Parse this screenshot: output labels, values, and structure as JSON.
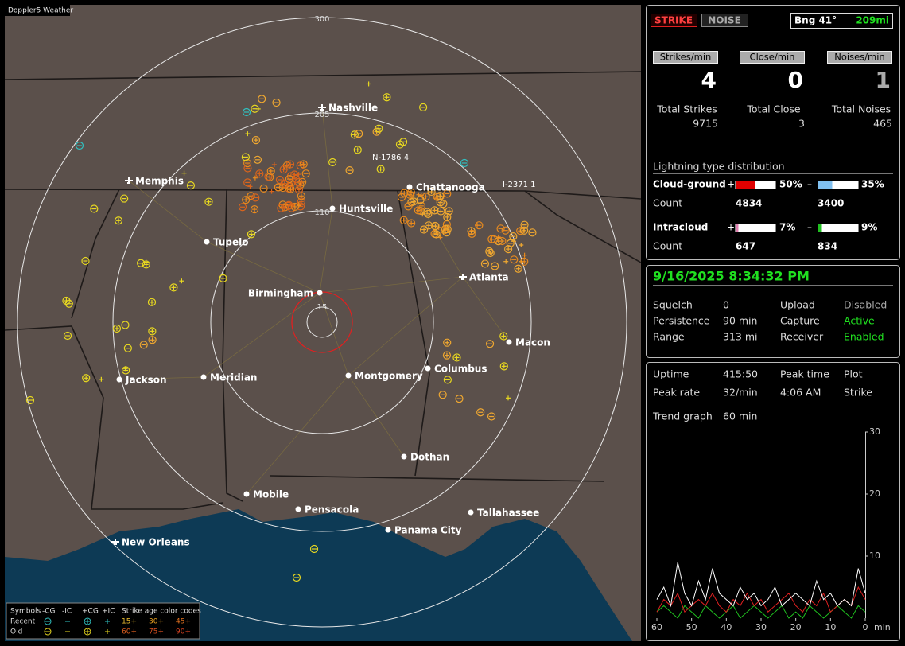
{
  "map": {
    "brand": "Doppler5 Weather",
    "range_labels": [
      "300",
      "205",
      "110",
      "15"
    ],
    "cities": [
      {
        "name": "Nashville",
        "airport": true
      },
      {
        "name": "Memphis",
        "airport": true
      },
      {
        "name": "Chattanooga",
        "airport": false
      },
      {
        "name": "Huntsville",
        "airport": false
      },
      {
        "name": "Tupelo",
        "airport": false
      },
      {
        "name": "Birmingham",
        "airport": false
      },
      {
        "name": "Atlanta",
        "airport": true
      },
      {
        "name": "Macon",
        "airport": false
      },
      {
        "name": "Jackson",
        "airport": false
      },
      {
        "name": "Meridian",
        "airport": false
      },
      {
        "name": "Montgomery",
        "airport": false
      },
      {
        "name": "Columbus",
        "airport": false
      },
      {
        "name": "Dothan",
        "airport": false
      },
      {
        "name": "Mobile",
        "airport": false
      },
      {
        "name": "Pensacola",
        "airport": false
      },
      {
        "name": "Panama City",
        "airport": false
      },
      {
        "name": "Tallahassee",
        "airport": false
      },
      {
        "name": "New Orleans",
        "airport": true
      }
    ],
    "markers": [
      "N-1786 4",
      "I-2371 1"
    ],
    "legend": {
      "symbols": "Symbols",
      "kinds": [
        "-CG",
        "-IC",
        "+CG",
        "+IC"
      ],
      "age_title": "Strike age color codes",
      "rows": [
        "Recent",
        "Old"
      ],
      "ages": [
        [
          "15+",
          "30+",
          "45+"
        ],
        [
          "60+",
          "75+",
          "90+"
        ]
      ]
    }
  },
  "status": {
    "strike": "STRIKE",
    "noise": "NOISE",
    "bearing": "Bng 41°",
    "distance": "209mi",
    "rates": [
      {
        "label": "Strikes/min",
        "value": 4,
        "total_label": "Total Strikes",
        "total": 9715
      },
      {
        "label": "Close/min",
        "value": 0,
        "total_label": "Total Close",
        "total": 3
      },
      {
        "label": "Noises/min",
        "value": 1,
        "total_label": "Total Noises",
        "total": 465
      }
    ],
    "distribution": {
      "title": "Lightning type distribution",
      "rows": [
        {
          "name": "Cloud-ground",
          "count_label": "Count",
          "pos": {
            "value": 50,
            "label": "50%"
          },
          "neg": {
            "value": 35,
            "label": "35%"
          },
          "pos_count": 4834,
          "neg_count": 3400
        },
        {
          "name": "Intracloud",
          "count_label": "Count",
          "pos": {
            "value": 7,
            "label": "7%"
          },
          "neg": {
            "value": 9,
            "label": "9%"
          },
          "pos_count": 647,
          "neg_count": 834
        }
      ],
      "plus": "+",
      "minus": "–"
    }
  },
  "settings": {
    "datetime": "9/16/2025 8:34:32 PM",
    "rows": [
      [
        "Squelch",
        "0",
        "Upload",
        "Disabled"
      ],
      [
        "Persistence",
        "90 min",
        "Capture",
        "Active"
      ],
      [
        "Range",
        "313 mi",
        "Receiver",
        "Enabled"
      ]
    ]
  },
  "info": {
    "rows": [
      [
        "Uptime",
        "415:50",
        "Peak time",
        "Plot"
      ],
      [
        "Peak rate",
        "32/min",
        "4:06 AM",
        "Strike"
      ]
    ],
    "trend_label": "Trend graph",
    "trend_value": "60 min"
  },
  "trend": {
    "ylim": [
      0,
      30
    ],
    "yticks": [
      30,
      20,
      10
    ],
    "xlim": [
      60,
      0
    ],
    "xticks": [
      60,
      50,
      40,
      30,
      20,
      10,
      0
    ],
    "unit": "min",
    "x": [
      60,
      58,
      56,
      54,
      52,
      50,
      48,
      46,
      44,
      42,
      40,
      38,
      36,
      34,
      32,
      30,
      28,
      26,
      24,
      22,
      20,
      18,
      16,
      14,
      12,
      10,
      8,
      6,
      4,
      2,
      0
    ],
    "series": [
      {
        "color": "#ffffff",
        "values": [
          3,
          5,
          2,
          9,
          4,
          2,
          6,
          3,
          8,
          4,
          3,
          2,
          5,
          3,
          4,
          2,
          3,
          5,
          2,
          3,
          4,
          3,
          2,
          6,
          3,
          4,
          2,
          3,
          2,
          8,
          4
        ]
      },
      {
        "color": "#e02020",
        "values": [
          1,
          3,
          2,
          4,
          1,
          2,
          3,
          2,
          4,
          2,
          1,
          3,
          2,
          4,
          2,
          3,
          1,
          2,
          3,
          4,
          2,
          1,
          3,
          2,
          4,
          1,
          2,
          3,
          2,
          5,
          3
        ]
      },
      {
        "color": "#20c020",
        "values": [
          1,
          2,
          1,
          0,
          2,
          1,
          0,
          2,
          1,
          0,
          1,
          2,
          0,
          1,
          2,
          1,
          0,
          1,
          2,
          0,
          1,
          0,
          2,
          1,
          0,
          1,
          2,
          1,
          0,
          2,
          1
        ]
      }
    ]
  }
}
